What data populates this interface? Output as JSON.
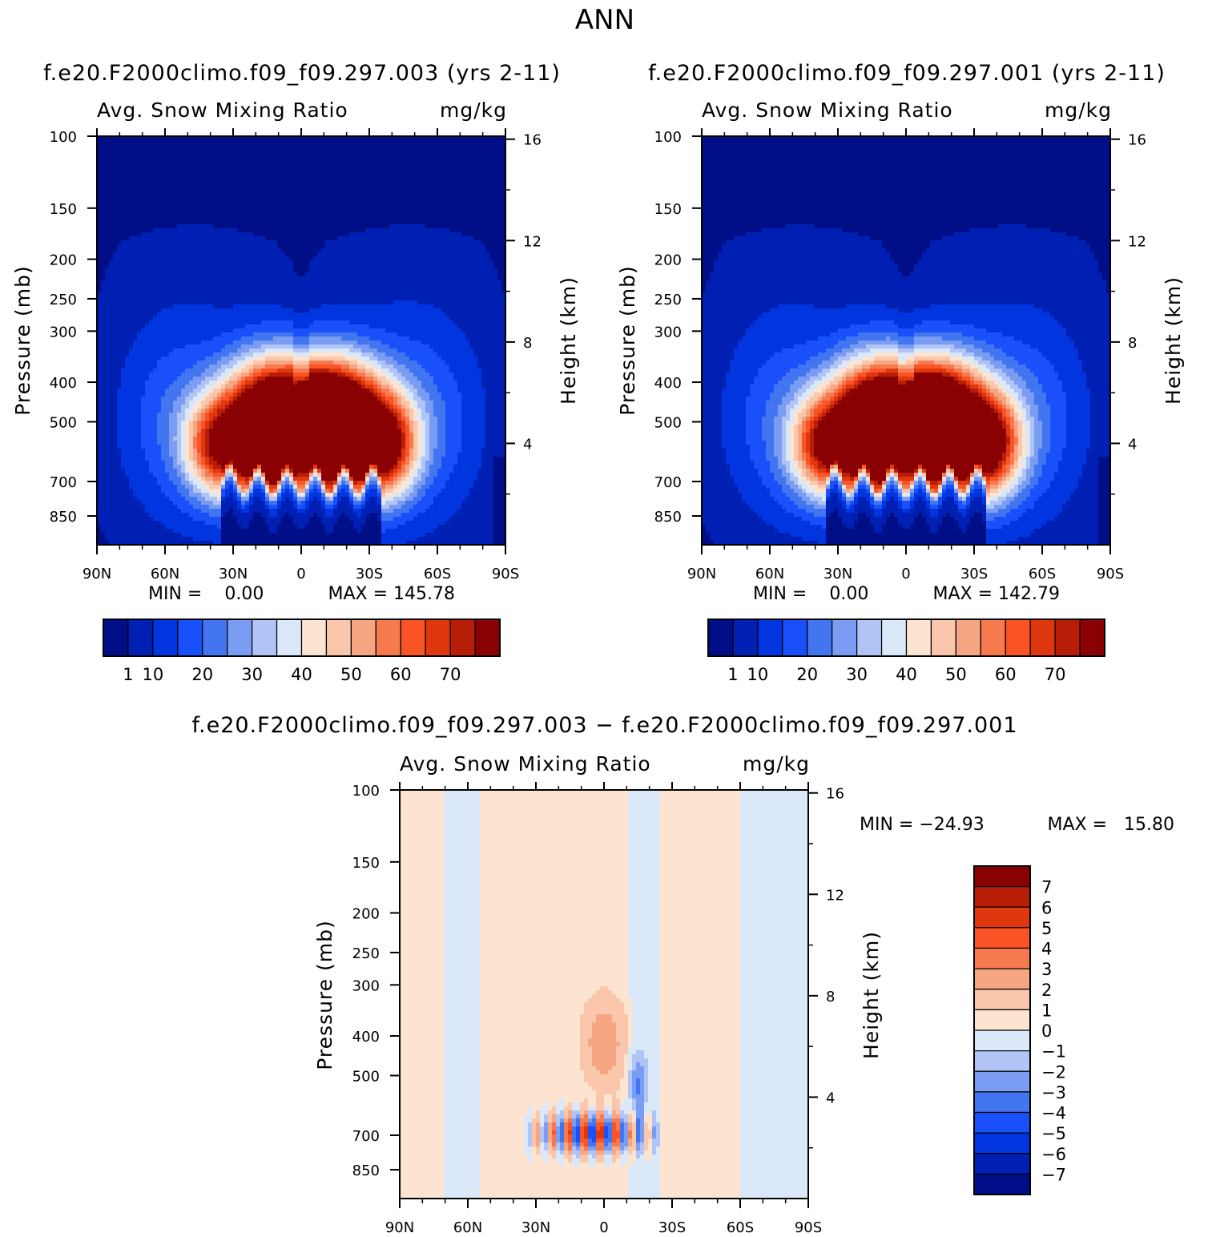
{
  "figure": {
    "season": "ANN"
  },
  "colors": {
    "scale": [
      "#000f87",
      "#0020b4",
      "#0035e0",
      "#1a50fa",
      "#4275f0",
      "#7a9cf2",
      "#b0c4f6",
      "#dae8fa",
      "#fde4d0",
      "#fac7ac",
      "#f7a683",
      "#f77a4f",
      "#fa5326",
      "#e0380e",
      "#b81d08",
      "#8a0104"
    ]
  },
  "chart_data": [
    {
      "type": "heatmap",
      "name": "panel-test",
      "title": "f.e20.F2000climo.f09_f09.297.003 (yrs 2-11)",
      "variable": "Avg. Snow Mixing Ratio",
      "units": "mg/kg",
      "ylabel": "Pressure (mb)",
      "ylabel_right": "Height (km)",
      "x_ticks": [
        "90N",
        "60N",
        "30N",
        "0",
        "30S",
        "60S",
        "90S"
      ],
      "x_range": [
        90,
        -90
      ],
      "y_ticks": [
        100,
        150,
        200,
        250,
        300,
        400,
        500,
        700,
        850
      ],
      "y_range": [
        100,
        1000
      ],
      "y_scale": "log",
      "right_ticks": [
        16,
        12,
        8,
        4
      ],
      "min_text": "MIN =    0.00",
      "max_text": "MAX = 145.78",
      "min": 0.0,
      "max": 145.78,
      "levels": [
        1,
        5,
        10,
        15,
        20,
        25,
        30,
        35,
        40,
        45,
        50,
        55,
        60,
        65,
        70
      ],
      "colorbar_labels": [
        "1",
        "10",
        "20",
        "30",
        "40",
        "50",
        "60",
        "70"
      ]
    },
    {
      "type": "heatmap",
      "name": "panel-control",
      "title": "f.e20.F2000climo.f09_f09.297.001 (yrs 2-11)",
      "variable": "Avg. Snow Mixing Ratio",
      "units": "mg/kg",
      "ylabel": "Pressure (mb)",
      "ylabel_right": "Height (km)",
      "x_ticks": [
        "90N",
        "60N",
        "30N",
        "0",
        "30S",
        "60S",
        "90S"
      ],
      "x_range": [
        90,
        -90
      ],
      "y_ticks": [
        100,
        150,
        200,
        250,
        300,
        400,
        500,
        700,
        850
      ],
      "y_range": [
        100,
        1000
      ],
      "y_scale": "log",
      "right_ticks": [
        16,
        12,
        8,
        4
      ],
      "min_text": "MIN =    0.00",
      "max_text": "MAX = 142.79",
      "min": 0.0,
      "max": 142.79,
      "levels": [
        1,
        5,
        10,
        15,
        20,
        25,
        30,
        35,
        40,
        45,
        50,
        55,
        60,
        65,
        70
      ],
      "colorbar_labels": [
        "1",
        "10",
        "20",
        "30",
        "40",
        "50",
        "60",
        "70"
      ]
    },
    {
      "type": "heatmap",
      "name": "panel-diff",
      "title": "f.e20.F2000climo.f09_f09.297.003 − f.e20.F2000climo.f09_f09.297.001",
      "variable": "Avg. Snow Mixing Ratio",
      "units": "mg/kg",
      "ylabel": "Pressure (mb)",
      "ylabel_right": "Height (km)",
      "x_ticks": [
        "90N",
        "60N",
        "30N",
        "0",
        "30S",
        "60S",
        "90S"
      ],
      "x_range": [
        90,
        -90
      ],
      "y_ticks": [
        100,
        150,
        200,
        250,
        300,
        400,
        500,
        700,
        850
      ],
      "y_range": [
        100,
        1000
      ],
      "y_scale": "log",
      "right_ticks": [
        16,
        12,
        8,
        4
      ],
      "min_text": "MIN = −24.93",
      "max_text": "MAX =   15.80",
      "min": -24.93,
      "max": 15.8,
      "levels": [
        -7,
        -6,
        -5,
        -4,
        -3,
        -2,
        -1,
        0,
        1,
        2,
        3,
        4,
        5,
        6,
        7
      ],
      "colorbar_labels": [
        "7",
        "6",
        "5",
        "4",
        "3",
        "2",
        "1",
        "0",
        "−1",
        "−2",
        "−3",
        "−4",
        "−5",
        "−6",
        "−7"
      ]
    }
  ]
}
